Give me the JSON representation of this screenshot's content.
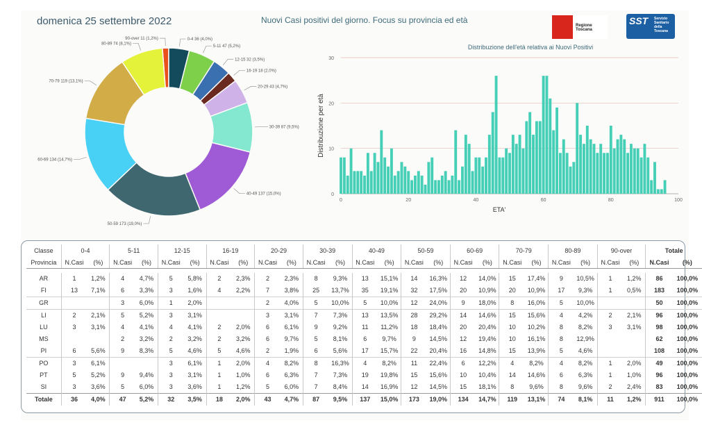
{
  "header": {
    "date": "domenica 25 settembre 2022",
    "title": "Nuovi Casi positivi del giorno. Focus su provincia ed età",
    "logo_regione": "Regione Toscana",
    "logo_sst": "SST",
    "logo_sst_text": [
      "Servizio",
      "Sanitario",
      "della",
      "Toscana"
    ]
  },
  "chart_data": [
    {
      "type": "pie",
      "labels": [
        "0-4",
        "5-11",
        "12-15",
        "16-19",
        "20-29",
        "30-39",
        "40-49",
        "50-59",
        "60-69",
        "70-79",
        "80-89",
        "90-over"
      ],
      "values": [
        36,
        47,
        32,
        18,
        43,
        87,
        137,
        173,
        134,
        119,
        74,
        11
      ],
      "percent_labels": [
        "(4,0%)",
        "(5,2%)",
        "(3,5%)",
        "(2,0%)",
        "(4,7%)",
        "(9,5%)",
        "(15,0%)",
        "(19,0%)",
        "(14,7%)",
        "(13,1%)",
        "(8,1%)",
        "(1,2%)"
      ],
      "colors": [
        "#134a5c",
        "#7ed04b",
        "#3a6fb0",
        "#6b2a20",
        "#cfb2e8",
        "#83e8cf",
        "#9f5ad6",
        "#3f6770",
        "#48d1f5",
        "#d2ad47",
        "#e5f23a",
        "#e8501c"
      ]
    },
    {
      "type": "bar",
      "title": "Distribuzione dell'età relativa ai Nuovi Positivi",
      "xlabel": "ETA'",
      "ylabel": "Distribuzione per età",
      "xlim": [
        0,
        100
      ],
      "ylim": [
        0,
        30
      ],
      "xticks": [
        0,
        20,
        40,
        60,
        80,
        100
      ],
      "yticks": [
        0,
        10,
        20,
        30
      ],
      "color": "#45cfb7",
      "x": [
        0,
        1,
        2,
        3,
        4,
        5,
        6,
        7,
        8,
        9,
        10,
        11,
        12,
        13,
        14,
        15,
        16,
        17,
        18,
        19,
        20,
        21,
        22,
        23,
        24,
        25,
        26,
        27,
        28,
        29,
        30,
        31,
        32,
        33,
        34,
        35,
        36,
        37,
        38,
        39,
        40,
        41,
        42,
        43,
        44,
        45,
        46,
        47,
        48,
        49,
        50,
        51,
        52,
        53,
        54,
        55,
        56,
        57,
        58,
        59,
        60,
        61,
        62,
        63,
        64,
        65,
        66,
        67,
        68,
        69,
        70,
        71,
        72,
        73,
        74,
        75,
        76,
        77,
        78,
        79,
        80,
        81,
        82,
        83,
        84,
        85,
        86,
        87,
        88,
        89,
        90,
        91,
        92,
        93,
        94,
        95,
        96
      ],
      "values": [
        8,
        8,
        4,
        10,
        5,
        5,
        5,
        4,
        9,
        5,
        9,
        7,
        14,
        8,
        6,
        10,
        4,
        5,
        7,
        6,
        5,
        3,
        4,
        5,
        4,
        2,
        7,
        8,
        3,
        3,
        4,
        5,
        3,
        4,
        14,
        3,
        6,
        13,
        11,
        5,
        8,
        8,
        6,
        8,
        13,
        18,
        26,
        8,
        8,
        10,
        9,
        13,
        11,
        13,
        10,
        16,
        18,
        13,
        16,
        16,
        26,
        26,
        21,
        14,
        19,
        9,
        12,
        9,
        6,
        7,
        20,
        13,
        11,
        15,
        12,
        11,
        9,
        11,
        9,
        9,
        15,
        10,
        12,
        13,
        12,
        9,
        11,
        10,
        10,
        8,
        11,
        8,
        3,
        7,
        1,
        1,
        3
      ],
      "note_values_count": 97
    }
  ],
  "table": {
    "age_classes": [
      "0-4",
      "5-11",
      "12-15",
      "16-19",
      "20-29",
      "30-39",
      "40-49",
      "50-59",
      "60-69",
      "70-79",
      "80-89",
      "90-over"
    ],
    "header_classe": "Classe",
    "header_provincia": "Provincia",
    "header_totale": "Totale",
    "col_ncasi": "N.Casi",
    "col_pct": "(%)",
    "rows": [
      {
        "prov": "AR",
        "cells": [
          [
            "1",
            "1,2%"
          ],
          [
            "4",
            "4,7%"
          ],
          [
            "5",
            "5,8%"
          ],
          [
            "2",
            "2,3%"
          ],
          [
            "2",
            "2,3%"
          ],
          [
            "8",
            "9,3%"
          ],
          [
            "13",
            "15,1%"
          ],
          [
            "14",
            "16,3%"
          ],
          [
            "12",
            "14,0%"
          ],
          [
            "15",
            "17,4%"
          ],
          [
            "9",
            "10,5%"
          ],
          [
            "1",
            "1,2%"
          ]
        ],
        "tot": "86",
        "totpct": "100,0%"
      },
      {
        "prov": "FI",
        "cells": [
          [
            "13",
            "7,1%"
          ],
          [
            "6",
            "3,3%"
          ],
          [
            "3",
            "1,6%"
          ],
          [
            "4",
            "2,2%"
          ],
          [
            "7",
            "3,8%"
          ],
          [
            "25",
            "13,7%"
          ],
          [
            "35",
            "19,1%"
          ],
          [
            "32",
            "17,5%"
          ],
          [
            "20",
            "10,9%"
          ],
          [
            "20",
            "10,9%"
          ],
          [
            "17",
            "9,3%"
          ],
          [
            "1",
            "0,5%"
          ]
        ],
        "tot": "183",
        "totpct": "100,0%"
      },
      {
        "prov": "GR",
        "cells": [
          [
            "",
            ""
          ],
          [
            "3",
            "6,0%"
          ],
          [
            "1",
            "2,0%"
          ],
          [
            "",
            ""
          ],
          [
            "2",
            "4,0%"
          ],
          [
            "5",
            "10,0%"
          ],
          [
            "5",
            "10,0%"
          ],
          [
            "12",
            "24,0%"
          ],
          [
            "9",
            "18,0%"
          ],
          [
            "8",
            "16,0%"
          ],
          [
            "5",
            "10,0%"
          ],
          [
            "",
            ""
          ]
        ],
        "tot": "50",
        "totpct": "100,0%"
      },
      {
        "prov": "LI",
        "cells": [
          [
            "2",
            "2,1%"
          ],
          [
            "5",
            "5,2%"
          ],
          [
            "3",
            "3,1%"
          ],
          [
            "",
            ""
          ],
          [
            "3",
            "3,1%"
          ],
          [
            "7",
            "7,3%"
          ],
          [
            "13",
            "13,5%"
          ],
          [
            "28",
            "29,2%"
          ],
          [
            "14",
            "14,6%"
          ],
          [
            "15",
            "15,6%"
          ],
          [
            "4",
            "4,2%"
          ],
          [
            "2",
            "2,1%"
          ]
        ],
        "tot": "96",
        "totpct": "100,0%"
      },
      {
        "prov": "LU",
        "cells": [
          [
            "3",
            "3,1%"
          ],
          [
            "4",
            "4,1%"
          ],
          [
            "4",
            "4,1%"
          ],
          [
            "2",
            "2,0%"
          ],
          [
            "6",
            "6,1%"
          ],
          [
            "9",
            "9,2%"
          ],
          [
            "11",
            "11,2%"
          ],
          [
            "18",
            "18,4%"
          ],
          [
            "20",
            "20,4%"
          ],
          [
            "10",
            "10,2%"
          ],
          [
            "8",
            "8,2%"
          ],
          [
            "3",
            "3,1%"
          ]
        ],
        "tot": "98",
        "totpct": "100,0%"
      },
      {
        "prov": "MS",
        "cells": [
          [
            "",
            ""
          ],
          [
            "2",
            "3,2%"
          ],
          [
            "2",
            "3,2%"
          ],
          [
            "2",
            "3,2%"
          ],
          [
            "6",
            "9,7%"
          ],
          [
            "5",
            "8,1%"
          ],
          [
            "6",
            "9,7%"
          ],
          [
            "9",
            "14,5%"
          ],
          [
            "12",
            "19,4%"
          ],
          [
            "10",
            "16,1%"
          ],
          [
            "8",
            "12,9%"
          ],
          [
            "",
            ""
          ]
        ],
        "tot": "62",
        "totpct": "100,0%"
      },
      {
        "prov": "PI",
        "cells": [
          [
            "6",
            "5,6%"
          ],
          [
            "9",
            "8,3%"
          ],
          [
            "5",
            "4,6%"
          ],
          [
            "5",
            "4,6%"
          ],
          [
            "2",
            "1,9%"
          ],
          [
            "6",
            "5,6%"
          ],
          [
            "17",
            "15,7%"
          ],
          [
            "22",
            "20,4%"
          ],
          [
            "16",
            "14,8%"
          ],
          [
            "15",
            "13,9%"
          ],
          [
            "5",
            "4,6%"
          ],
          [
            "",
            ""
          ]
        ],
        "tot": "108",
        "totpct": "100,0%"
      },
      {
        "prov": "PO",
        "cells": [
          [
            "3",
            "6,1%"
          ],
          [
            "",
            ""
          ],
          [
            "3",
            "6,1%"
          ],
          [
            "1",
            "2,0%"
          ],
          [
            "4",
            "8,2%"
          ],
          [
            "8",
            "16,3%"
          ],
          [
            "4",
            "8,2%"
          ],
          [
            "11",
            "22,4%"
          ],
          [
            "6",
            "12,2%"
          ],
          [
            "4",
            "8,2%"
          ],
          [
            "4",
            "8,2%"
          ],
          [
            "1",
            "2,0%"
          ]
        ],
        "tot": "49",
        "totpct": "100,0%"
      },
      {
        "prov": "PT",
        "cells": [
          [
            "5",
            "5,2%"
          ],
          [
            "9",
            "9,4%"
          ],
          [
            "3",
            "3,1%"
          ],
          [
            "1",
            "1,0%"
          ],
          [
            "6",
            "6,3%"
          ],
          [
            "7",
            "7,3%"
          ],
          [
            "19",
            "19,8%"
          ],
          [
            "15",
            "15,6%"
          ],
          [
            "10",
            "10,4%"
          ],
          [
            "14",
            "14,6%"
          ],
          [
            "6",
            "6,3%"
          ],
          [
            "1",
            "1,0%"
          ]
        ],
        "tot": "96",
        "totpct": "100,0%"
      },
      {
        "prov": "SI",
        "cells": [
          [
            "3",
            "3,6%"
          ],
          [
            "5",
            "6,0%"
          ],
          [
            "3",
            "3,6%"
          ],
          [
            "1",
            "1,2%"
          ],
          [
            "5",
            "6,0%"
          ],
          [
            "7",
            "8,4%"
          ],
          [
            "14",
            "16,9%"
          ],
          [
            "12",
            "14,5%"
          ],
          [
            "15",
            "18,1%"
          ],
          [
            "8",
            "9,6%"
          ],
          [
            "8",
            "9,6%"
          ],
          [
            "2",
            "2,4%"
          ]
        ],
        "tot": "83",
        "totpct": "100,0%"
      }
    ],
    "total_row": {
      "prov": "Totale",
      "cells": [
        [
          "36",
          "4,0%"
        ],
        [
          "47",
          "5,2%"
        ],
        [
          "32",
          "3,5%"
        ],
        [
          "18",
          "2,0%"
        ],
        [
          "43",
          "4,7%"
        ],
        [
          "87",
          "9,5%"
        ],
        [
          "137",
          "15,0%"
        ],
        [
          "173",
          "19,0%"
        ],
        [
          "134",
          "14,7%"
        ],
        [
          "119",
          "13,1%"
        ],
        [
          "74",
          "8,1%"
        ],
        [
          "11",
          "1,2%"
        ]
      ],
      "tot": "911",
      "totpct": "100,0%"
    }
  }
}
